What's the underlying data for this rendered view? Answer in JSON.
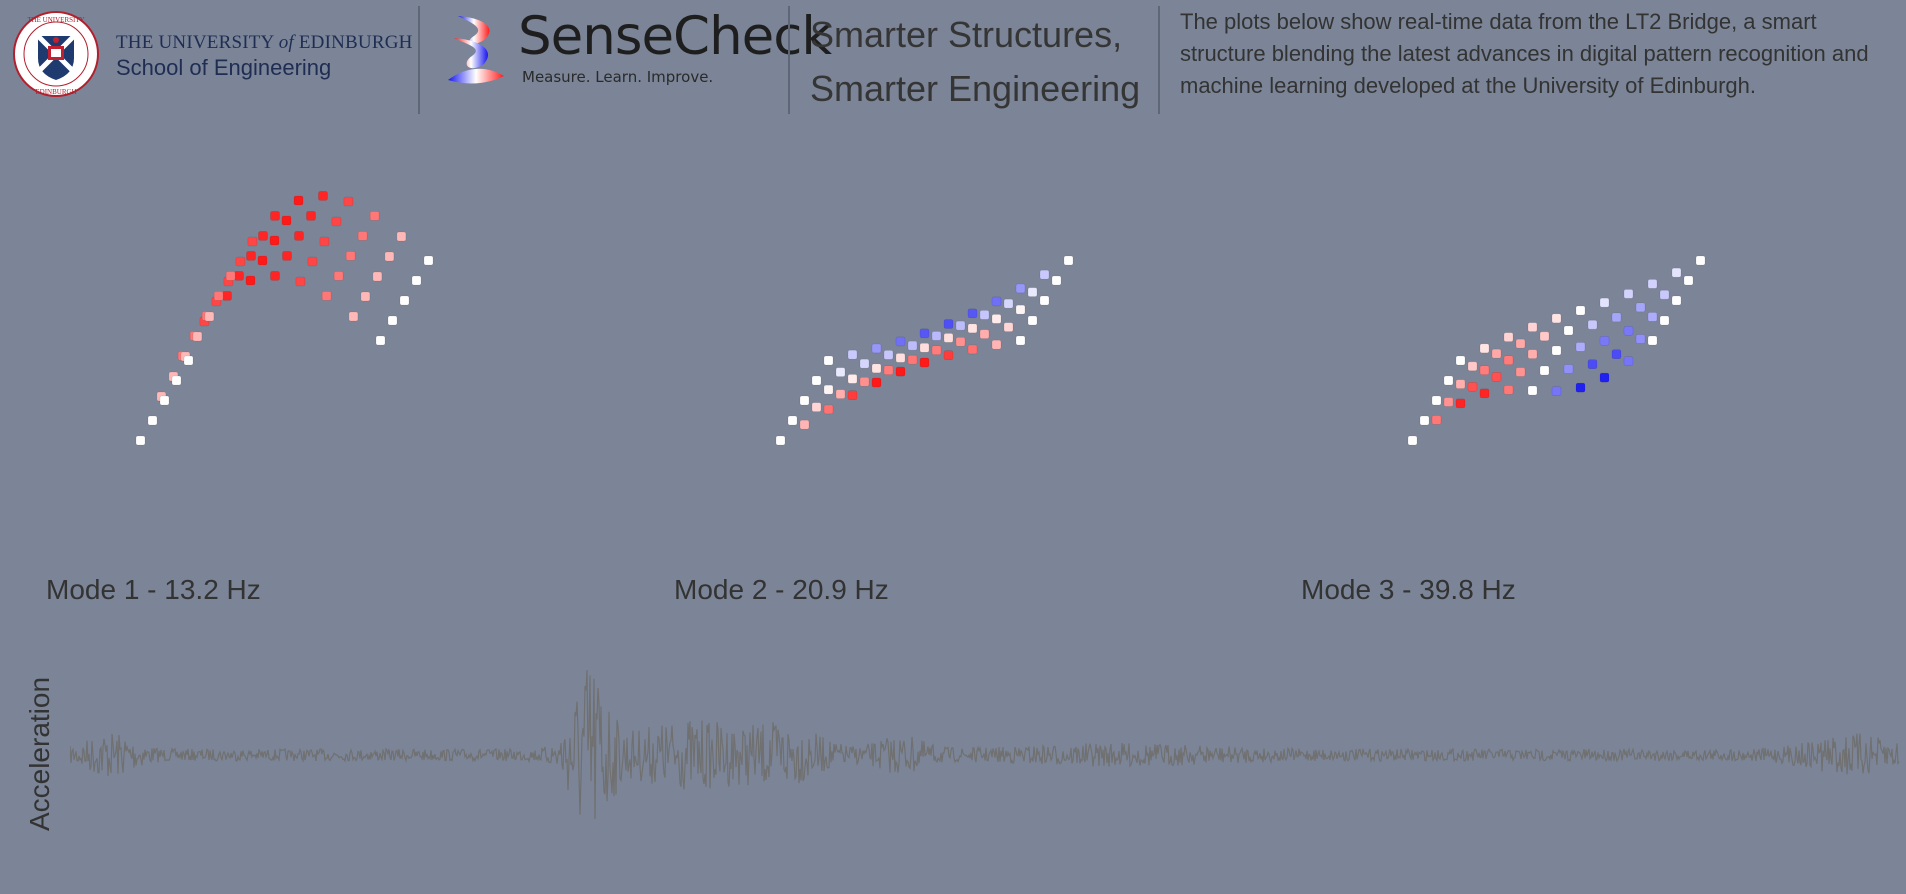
{
  "header": {
    "university": {
      "line1_prefix": "THE UNIVERSITY",
      "line1_of": "of",
      "line1_suffix": "EDINBURGH",
      "line2": "School of Engineering",
      "crest_icon": "university-crest-icon"
    },
    "brand": {
      "name": "SenseCheck",
      "tagline": "Measure. Learn. Improve.",
      "logo_icon": "sensecheck-logo-icon"
    },
    "tagline": {
      "line1": "Smarter Structures,",
      "line2": "Smarter Engineering"
    },
    "description": "The plots below show real-time data from the LT2 Bridge, a smart structure blending the latest advances in digital pattern recognition and machine learning developed at the University of Edinburgh."
  },
  "modes": [
    {
      "label": "Mode 1 - 13.2 Hz",
      "shape": "bending"
    },
    {
      "label": "Mode 2 - 20.9 Hz",
      "shape": "torsion"
    },
    {
      "label": "Mode 3 - 39.8 Hz",
      "shape": "second-bending"
    }
  ],
  "acceleration": {
    "axis_label": "Acceleration"
  },
  "colors": {
    "background": "#7b8597",
    "positive": "#ff1a1a",
    "negative": "#1414f0",
    "neutral": "#ffffff",
    "signal": "#707070",
    "brand_navy": "#1f2d53"
  }
}
